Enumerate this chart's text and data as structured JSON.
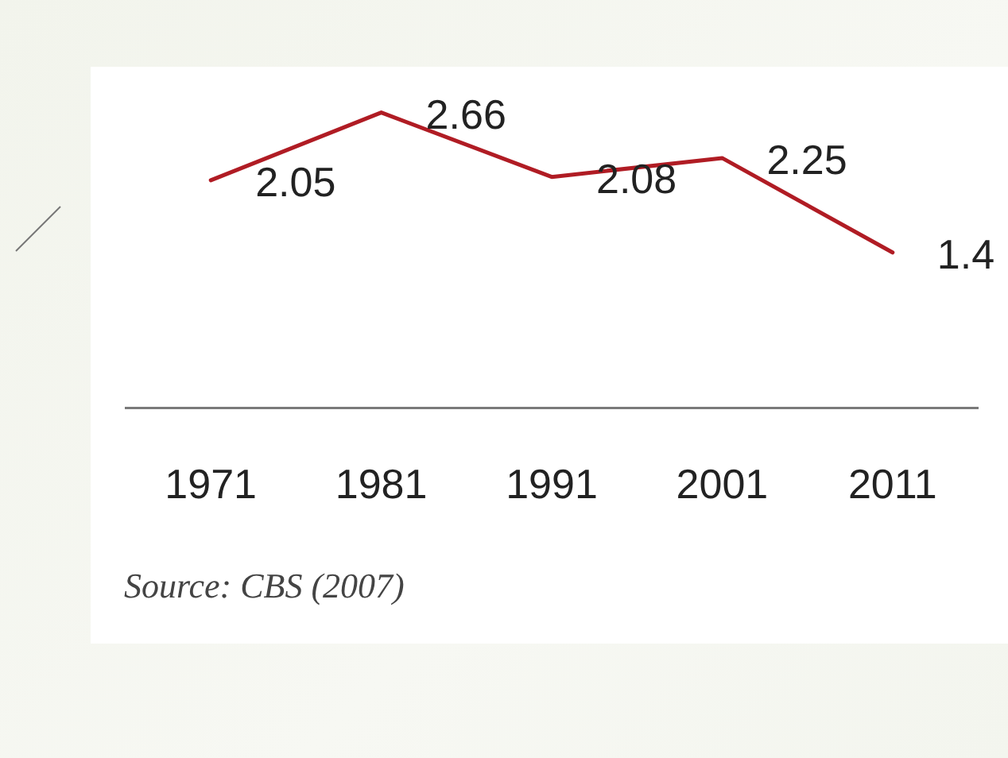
{
  "chart_data": {
    "type": "line",
    "categories": [
      "1971",
      "1981",
      "1991",
      "2001",
      "2011"
    ],
    "series": [
      {
        "color": "#b01c24",
        "values": [
          2.05,
          2.66,
          2.08,
          2.25,
          1.4
        ]
      }
    ],
    "tick_labels": "x",
    "grid": false,
    "legend": false,
    "marker": "none",
    "line_style": "solid",
    "data_labels": true,
    "annotations": [
      "Source: CBS (2007)"
    ]
  }
}
